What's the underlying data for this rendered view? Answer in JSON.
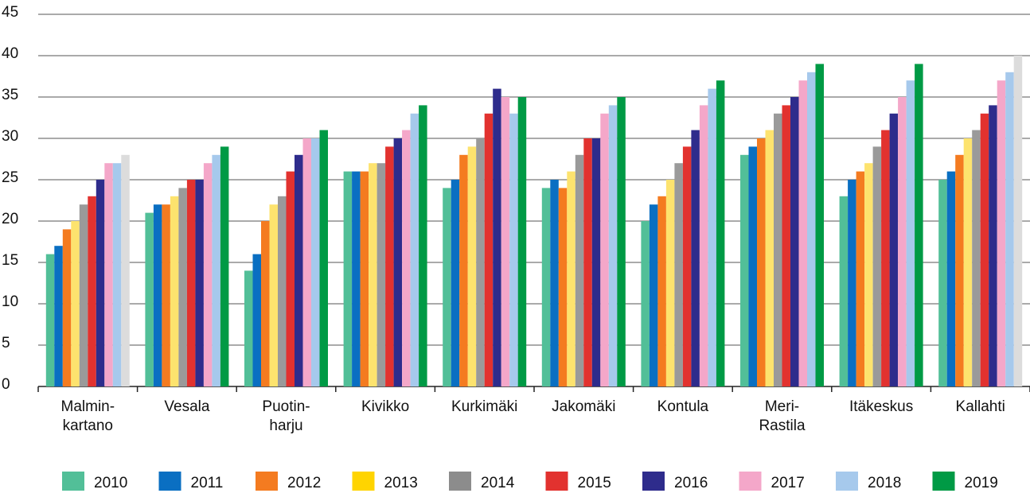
{
  "chart_data": {
    "type": "bar",
    "categories": [
      "Malmin-\nkartano",
      "Vesala",
      "Puotin-\nharju",
      "Kivikko",
      "Kurkimäki",
      "Jakomäki",
      "Kontula",
      "Meri-\nRastila",
      "Itäkeskus",
      "Kallahti"
    ],
    "series": [
      {
        "name": "2010",
        "color": "#52bf98",
        "values": [
          16,
          21,
          14,
          26,
          24,
          24,
          20,
          28,
          23,
          25
        ]
      },
      {
        "name": "2011",
        "color": "#0a6fc2",
        "values": [
          17,
          22,
          16,
          26,
          25,
          25,
          22,
          29,
          25,
          26
        ]
      },
      {
        "name": "2012",
        "color": "#f47b20",
        "values": [
          19,
          22,
          20,
          26,
          28,
          24,
          23,
          30,
          26,
          28
        ]
      },
      {
        "name": "2013",
        "color": "#fde36e",
        "values": [
          20,
          23,
          22,
          27,
          29,
          26,
          25,
          31,
          27,
          30
        ]
      },
      {
        "name": "2014",
        "color": "#9a9a9a",
        "values": [
          22,
          24,
          23,
          27,
          30,
          28,
          27,
          33,
          29,
          31
        ]
      },
      {
        "name": "2015",
        "color": "#e2322f",
        "values": [
          23,
          25,
          26,
          29,
          33,
          30,
          29,
          34,
          31,
          33
        ]
      },
      {
        "name": "2016",
        "color": "#2e2c8c",
        "values": [
          25,
          25,
          28,
          30,
          36,
          30,
          31,
          35,
          33,
          34
        ]
      },
      {
        "name": "2017",
        "color": "#f4a7c9",
        "values": [
          27,
          27,
          30,
          31,
          35,
          33,
          34,
          37,
          35,
          37
        ]
      },
      {
        "name": "2018",
        "color": "#a6c9ec",
        "values": [
          27,
          28,
          30,
          33,
          33,
          34,
          36,
          38,
          37,
          38
        ]
      },
      {
        "name": "2019",
        "color": "#009a45",
        "values": [
          28,
          29,
          31,
          34,
          35,
          35,
          37,
          39,
          39,
          40
        ],
        "point_colors": [
          "#dcdcdc",
          "#009a45",
          "#009a45",
          "#009a45",
          "#009a45",
          "#009a45",
          "#009a45",
          "#009a45",
          "#009a45",
          "#dcdcdc"
        ]
      }
    ],
    "legend_colors": [
      "#52bf98",
      "#0a6fc2",
      "#f47b20",
      "#ffd400",
      "#8c8c8c",
      "#e2322f",
      "#2e2c8c",
      "#f4a7c9",
      "#a6c9ec",
      "#009a45"
    ],
    "ylim": [
      0,
      45
    ],
    "yticks": [
      0,
      5,
      10,
      15,
      20,
      25,
      30,
      35,
      40,
      45
    ],
    "grid": true,
    "legend": "bottom"
  }
}
